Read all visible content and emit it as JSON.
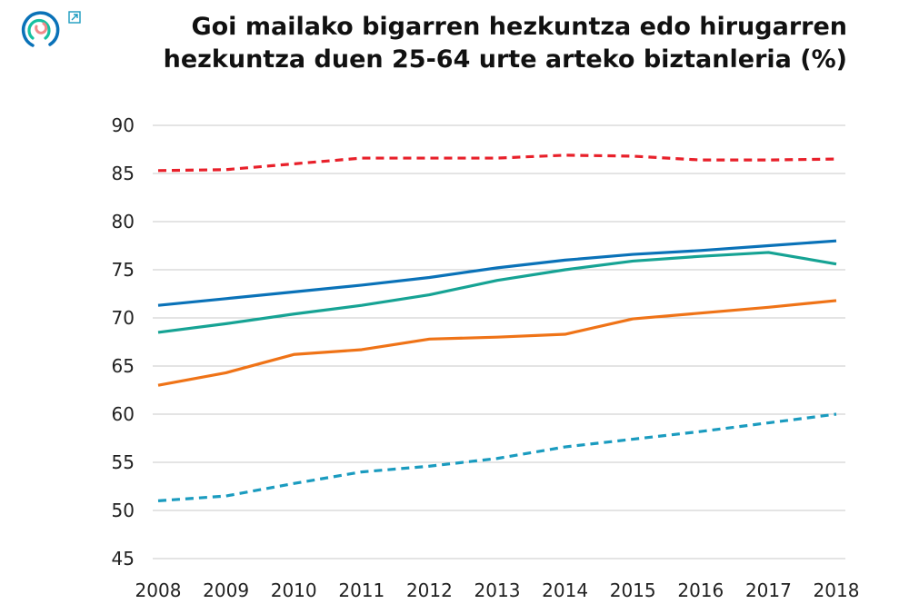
{
  "chart_data": {
    "type": "line",
    "title": "Goi mailako bigarren hezkuntza edo hirugarren hezkuntza duen 25-64 urte arteko biztanleria (%)",
    "xlabel": "",
    "ylabel": "",
    "ylim": [
      45,
      90
    ],
    "yticks": [
      45,
      50,
      55,
      60,
      65,
      70,
      75,
      80,
      85,
      90
    ],
    "grid": true,
    "legend": "none",
    "x": [
      2008,
      2009,
      2010,
      2011,
      2012,
      2013,
      2014,
      2015,
      2016,
      2017,
      2018
    ],
    "series": [
      {
        "color": "#e8202a",
        "dash": true,
        "values": [
          85.3,
          85.4,
          86.0,
          86.6,
          86.6,
          86.6,
          86.9,
          86.8,
          86.4,
          86.4,
          86.5
        ]
      },
      {
        "color": "#0a72b8",
        "dash": false,
        "values": [
          71.3,
          72.0,
          72.7,
          73.4,
          74.2,
          75.2,
          76.0,
          76.6,
          77.0,
          77.5,
          78.0
        ]
      },
      {
        "color": "#16a394",
        "dash": false,
        "values": [
          68.5,
          69.4,
          70.4,
          71.3,
          72.4,
          73.9,
          75.0,
          75.9,
          76.4,
          76.8,
          75.6
        ]
      },
      {
        "color": "#ef7317",
        "dash": false,
        "values": [
          63.0,
          64.3,
          66.2,
          66.7,
          67.8,
          68.0,
          68.3,
          69.9,
          70.5,
          71.1,
          71.8
        ]
      },
      {
        "color": "#1a9bbf",
        "dash": true,
        "values": [
          51.0,
          51.5,
          52.8,
          54.0,
          54.6,
          55.4,
          56.6,
          57.4,
          58.2,
          59.1,
          60.0
        ]
      }
    ]
  },
  "logo": {
    "icon": "concentric-arcs-logo",
    "colors": [
      "#0a72b8",
      "#16c0a0",
      "#f08a8a"
    ]
  },
  "external_link_icon": "external-link-icon"
}
